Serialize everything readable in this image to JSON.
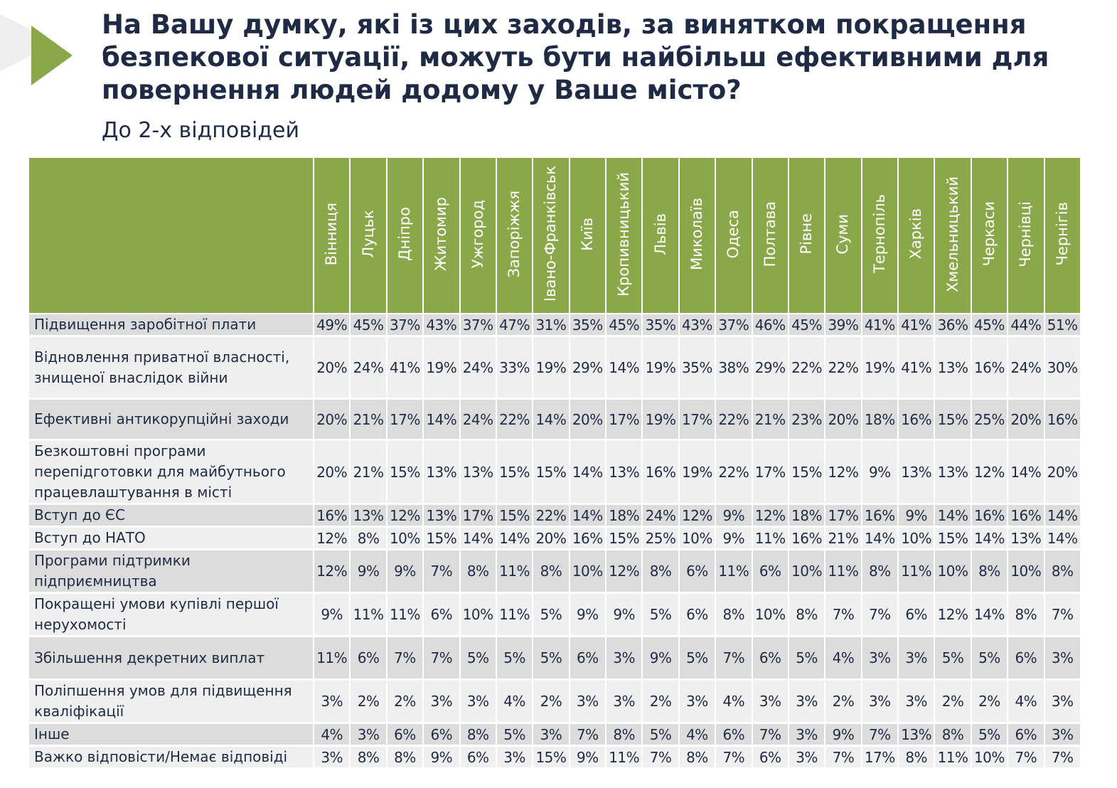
{
  "title": "На Вашу думку, які із цих заходів, за винятком покращення безпекової ситуації, можуть бути найбільш ефективними для повернення людей додому у Ваше місто?",
  "subtitle": "До 2-х відповідей",
  "colors": {
    "header": "#8aa74a",
    "row_dark": "#dcdcdc",
    "row_light": "#efefef",
    "text": "#1f2a44"
  },
  "chart_data": {
    "type": "table",
    "columns": [
      "Вінниця",
      "Луцьк",
      "Дніпро",
      "Житомир",
      "Ужгород",
      "Запоріжжя",
      "Івано-Франківськ",
      "Київ",
      "Кропивницький",
      "Львів",
      "Миколаїв",
      "Одеса",
      "Полтава",
      "Рівне",
      "Суми",
      "Тернопіль",
      "Харків",
      "Хмельницький",
      "Черкаси",
      "Чернівці",
      "Чернігів"
    ],
    "rows": [
      {
        "label": "Підвищення заробітної плати",
        "values": [
          "49%",
          "45%",
          "37%",
          "43%",
          "37%",
          "47%",
          "31%",
          "35%",
          "45%",
          "35%",
          "43%",
          "37%",
          "46%",
          "45%",
          "39%",
          "41%",
          "41%",
          "36%",
          "45%",
          "44%",
          "51%"
        ]
      },
      {
        "label": "Відновлення приватної власності, знищеної внаслідок війни",
        "values": [
          "20%",
          "24%",
          "41%",
          "19%",
          "24%",
          "33%",
          "19%",
          "29%",
          "14%",
          "19%",
          "35%",
          "38%",
          "29%",
          "22%",
          "22%",
          "19%",
          "41%",
          "13%",
          "16%",
          "24%",
          "30%"
        ]
      },
      {
        "label": "Ефективні антикорупційні заходи",
        "values": [
          "20%",
          "21%",
          "17%",
          "14%",
          "24%",
          "22%",
          "14%",
          "20%",
          "17%",
          "19%",
          "17%",
          "22%",
          "21%",
          "23%",
          "20%",
          "18%",
          "16%",
          "15%",
          "25%",
          "20%",
          "16%"
        ]
      },
      {
        "label": "Безкоштовні програми перепідготовки для майбутнього працевлаштування в місті",
        "values": [
          "20%",
          "21%",
          "15%",
          "13%",
          "13%",
          "15%",
          "15%",
          "14%",
          "13%",
          "16%",
          "19%",
          "22%",
          "17%",
          "15%",
          "12%",
          "9%",
          "13%",
          "13%",
          "12%",
          "14%",
          "20%"
        ]
      },
      {
        "label": "Вступ до ЄС",
        "values": [
          "16%",
          "13%",
          "12%",
          "13%",
          "17%",
          "15%",
          "22%",
          "14%",
          "18%",
          "24%",
          "12%",
          "9%",
          "12%",
          "18%",
          "17%",
          "16%",
          "9%",
          "14%",
          "16%",
          "16%",
          "14%"
        ]
      },
      {
        "label": "Вступ до НАТО",
        "values": [
          "12%",
          "8%",
          "10%",
          "15%",
          "14%",
          "14%",
          "20%",
          "16%",
          "15%",
          "25%",
          "10%",
          "9%",
          "11%",
          "16%",
          "21%",
          "14%",
          "10%",
          "15%",
          "14%",
          "13%",
          "14%"
        ]
      },
      {
        "label": "Програми підтримки підприємництва",
        "values": [
          "12%",
          "9%",
          "9%",
          "7%",
          "8%",
          "11%",
          "8%",
          "10%",
          "12%",
          "8%",
          "6%",
          "11%",
          "6%",
          "10%",
          "11%",
          "8%",
          "11%",
          "10%",
          "8%",
          "10%",
          "8%"
        ]
      },
      {
        "label": "Покращені умови купівлі першої нерухомості",
        "values": [
          "9%",
          "11%",
          "11%",
          "6%",
          "10%",
          "11%",
          "5%",
          "9%",
          "9%",
          "5%",
          "6%",
          "8%",
          "10%",
          "8%",
          "7%",
          "7%",
          "6%",
          "12%",
          "14%",
          "8%",
          "7%"
        ]
      },
      {
        "label": "Збільшення декретних виплат",
        "values": [
          "11%",
          "6%",
          "7%",
          "7%",
          "5%",
          "5%",
          "5%",
          "6%",
          "3%",
          "9%",
          "5%",
          "7%",
          "6%",
          "5%",
          "4%",
          "3%",
          "3%",
          "5%",
          "5%",
          "6%",
          "3%"
        ]
      },
      {
        "label": "Поліпшення умов для підвищення кваліфікації",
        "values": [
          "3%",
          "2%",
          "2%",
          "3%",
          "3%",
          "4%",
          "2%",
          "3%",
          "3%",
          "2%",
          "3%",
          "4%",
          "3%",
          "3%",
          "2%",
          "3%",
          "3%",
          "2%",
          "2%",
          "4%",
          "3%"
        ]
      },
      {
        "label": "Інше",
        "values": [
          "4%",
          "3%",
          "6%",
          "6%",
          "8%",
          "5%",
          "3%",
          "7%",
          "8%",
          "5%",
          "4%",
          "6%",
          "7%",
          "3%",
          "9%",
          "7%",
          "13%",
          "8%",
          "5%",
          "6%",
          "3%"
        ]
      },
      {
        "label": "Важко відповісти/Немає відповіді",
        "values": [
          "3%",
          "8%",
          "8%",
          "9%",
          "6%",
          "3%",
          "15%",
          "9%",
          "11%",
          "7%",
          "8%",
          "7%",
          "6%",
          "3%",
          "7%",
          "17%",
          "8%",
          "11%",
          "10%",
          "7%",
          "7%"
        ]
      }
    ]
  }
}
